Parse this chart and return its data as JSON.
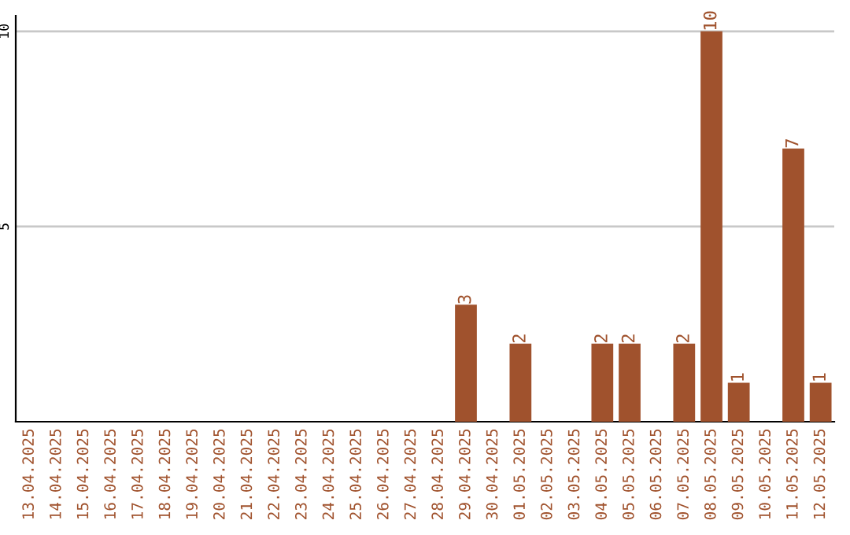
{
  "chart_data": {
    "type": "bar",
    "categories": [
      "13.04.2025",
      "14.04.2025",
      "15.04.2025",
      "16.04.2025",
      "17.04.2025",
      "18.04.2025",
      "19.04.2025",
      "20.04.2025",
      "21.04.2025",
      "22.04.2025",
      "23.04.2025",
      "24.04.2025",
      "25.04.2025",
      "26.04.2025",
      "27.04.2025",
      "28.04.2025",
      "29.04.2025",
      "30.04.2025",
      "01.05.2025",
      "02.05.2025",
      "03.05.2025",
      "04.05.2025",
      "05.05.2025",
      "06.05.2025",
      "07.05.2025",
      "08.05.2025",
      "09.05.2025",
      "10.05.2025",
      "11.05.2025",
      "12.05.2025"
    ],
    "values": [
      0,
      0,
      0,
      0,
      0,
      0,
      0,
      0,
      0,
      0,
      0,
      0,
      0,
      0,
      0,
      0,
      3,
      0,
      2,
      0,
      0,
      2,
      2,
      0,
      2,
      10,
      1,
      0,
      7,
      1
    ],
    "value_labels": [
      null,
      null,
      null,
      null,
      null,
      null,
      null,
      null,
      null,
      null,
      null,
      null,
      null,
      null,
      null,
      null,
      "3",
      null,
      "2",
      null,
      null,
      "2",
      "2",
      null,
      "2",
      "10",
      "1",
      null,
      "7",
      "1"
    ],
    "color": "#a0522d",
    "ylim": [
      0,
      10.4
    ],
    "yticks": [
      5,
      10
    ],
    "grid": "y"
  }
}
